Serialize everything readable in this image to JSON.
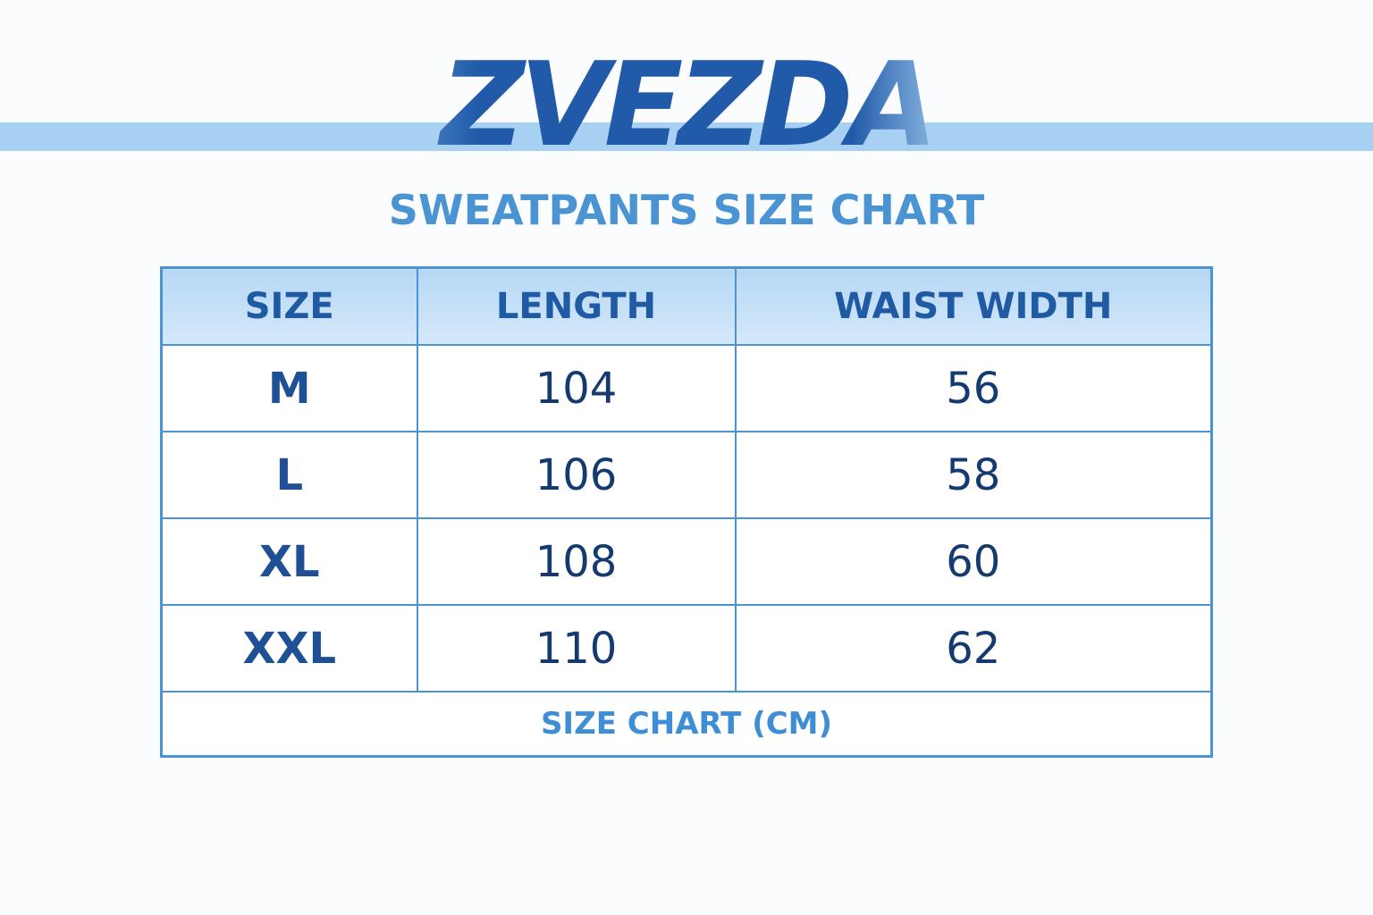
{
  "header": {
    "brand": "ZVEZDA",
    "title": "SWEATPANTS SIZE CHART"
  },
  "table": {
    "columns": [
      "SIZE",
      "LENGTH",
      "WAIST WIDTH"
    ],
    "rows": [
      [
        "M",
        "104",
        "56"
      ],
      [
        "L",
        "106",
        "58"
      ],
      [
        "XL",
        "108",
        "60"
      ],
      [
        "XXL",
        "110",
        "62"
      ]
    ],
    "footer": "SIZE CHART (CM)"
  }
}
